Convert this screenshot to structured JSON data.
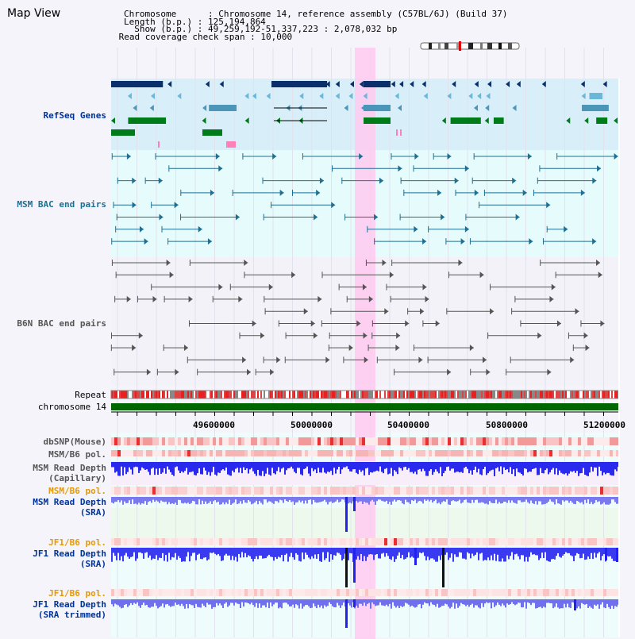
{
  "title": "Map View",
  "header": {
    "chromosome": "Chromosome      : Chromosome 14, reference assembly (C57BL/6J) (Build 37)",
    "length": "Length (b.p.) : 125,194,864",
    "show": "  Show (b.p.) : 49,259,192-51,337,223 : 2,078,032 bp",
    "coverage": " Read coverage check span : 10,000"
  },
  "tracks": {
    "refseq": "RefSeq Genes",
    "msm_bac": "MSM BAC end pairs",
    "b6n_bac": "B6N BAC end pairs",
    "repeat": "Repeat",
    "chromosome": "chromosome 14",
    "dbsnp": "dbSNP(Mouse)",
    "msm_b6_pol_1": "MSM/B6 pol.",
    "msm_depth_cap_1": "MSM Read Depth",
    "msm_depth_cap_2": "(Capillary)",
    "msm_b6_pol_2": "MSM/B6 pol.",
    "msm_depth_sra_1": "MSM Read Depth",
    "msm_depth_sra_2": "(SRA)",
    "jf1_b6_pol_1": "JF1/B6 pol.",
    "jf1_depth_sra_1": "JF1 Read Depth",
    "jf1_depth_sra_2": "(SRA)",
    "jf1_b6_pol_2": "JF1/B6 pol.",
    "jf1_depth_trim_1": "JF1 Read Depth",
    "jf1_depth_trim_2": "(SRA trimmed)"
  },
  "axis": {
    "ticks": [
      "49600000",
      "50000000",
      "50400000",
      "50800000",
      "51200000"
    ]
  },
  "colors": {
    "refseq_bg": "#d8eef9",
    "msm_bg": "#e6fbfb",
    "b6n_bg": "#f2f2f8",
    "highlight": "#ffcaf0",
    "chromosome_bar": "#006600",
    "gene_dark": "#0a2f6b",
    "gene_mid": "#4a96b8",
    "gene_green": "#007b1a",
    "msm_pair": "#1f6f93",
    "b6n_pair": "#555555",
    "depth_blue": "#2222ee",
    "pol_red": "#ee4444",
    "label_blue": "#003399",
    "label_orange": "#e69900"
  }
}
